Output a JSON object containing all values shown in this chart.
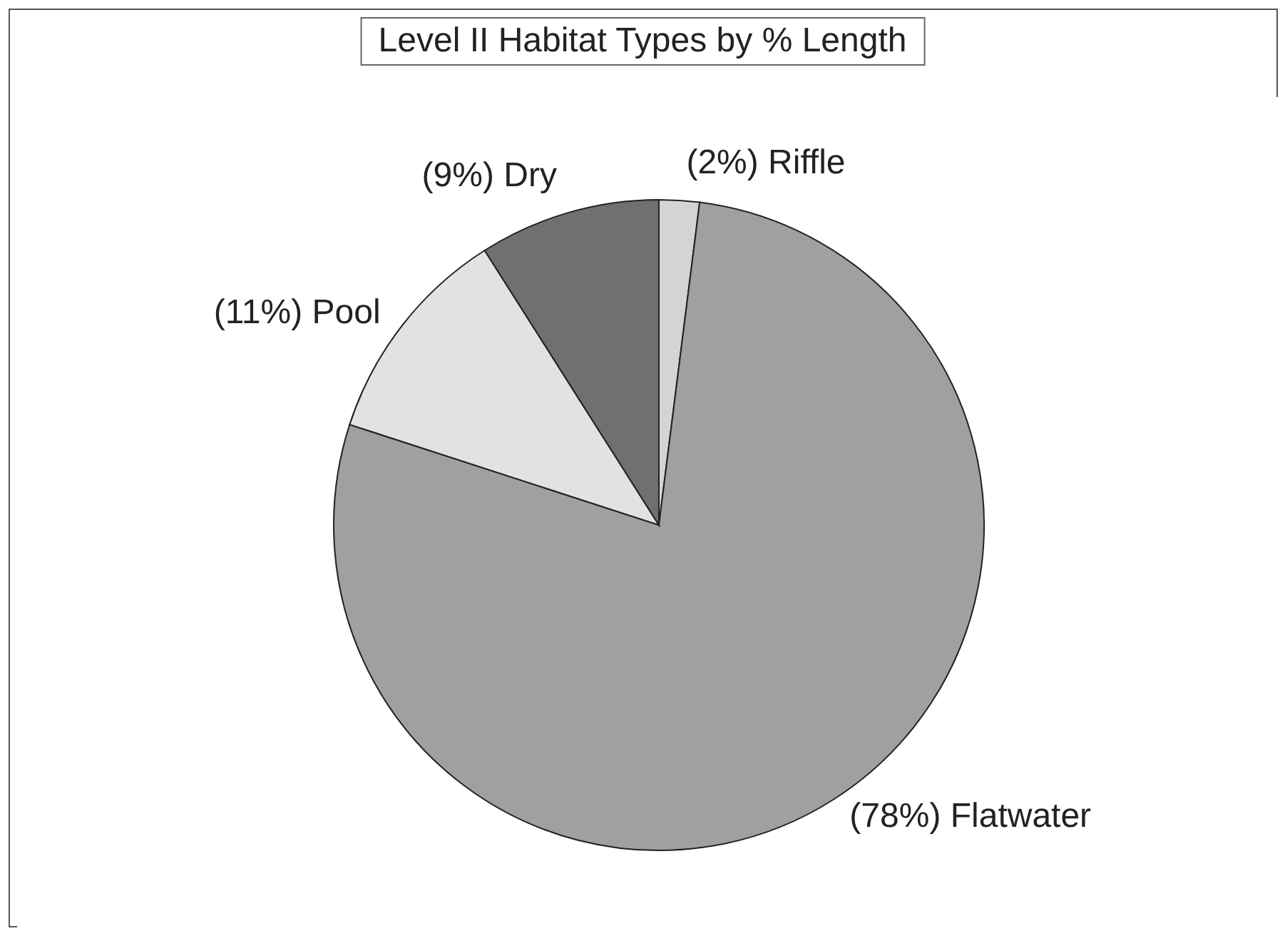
{
  "chart_data": {
    "type": "pie",
    "title": "Level II Habitat Types by % Length",
    "categories": [
      "Riffle",
      "Flatwater",
      "Pool",
      "Dry"
    ],
    "values": [
      2,
      78,
      11,
      9
    ],
    "value_labels": [
      "(2%)",
      "(78%)",
      "(11%)",
      "(9%)"
    ],
    "colors": [
      "#d4d4d4",
      "#a0a0a0",
      "#e2e2e2",
      "#707070"
    ]
  }
}
